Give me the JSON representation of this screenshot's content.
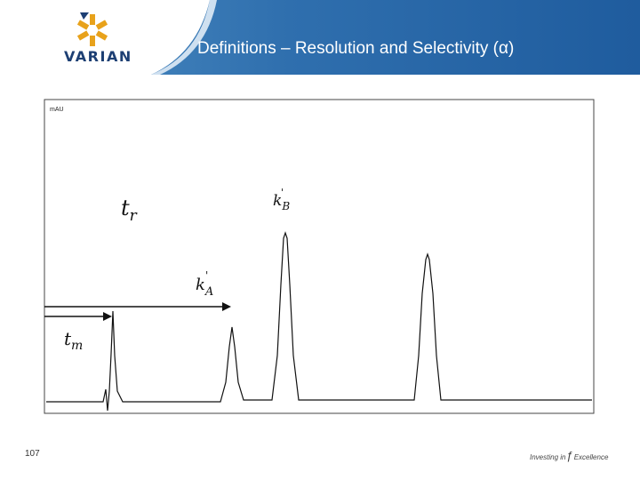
{
  "header": {
    "logo_text": "VARIAN",
    "title": "Definitions – Resolution and Selectivity (α)"
  },
  "chromatogram": {
    "y_unit": "mAU",
    "labels": {
      "tr": "t",
      "tr_sub": "r",
      "tm": "t",
      "tm_sub": "m",
      "kA": "k",
      "kA_sub": "A",
      "kA_prime": "'",
      "kB": "k",
      "kB_sub": "B",
      "kB_prime": "'"
    }
  },
  "footer": {
    "page_number": "107",
    "tagline_left": "Investing in",
    "tagline_right": "Excellence"
  },
  "colors": {
    "header_blue": "#2f6fae",
    "logo_navy": "#1d3f73",
    "logo_gold": "#e8a21b"
  }
}
